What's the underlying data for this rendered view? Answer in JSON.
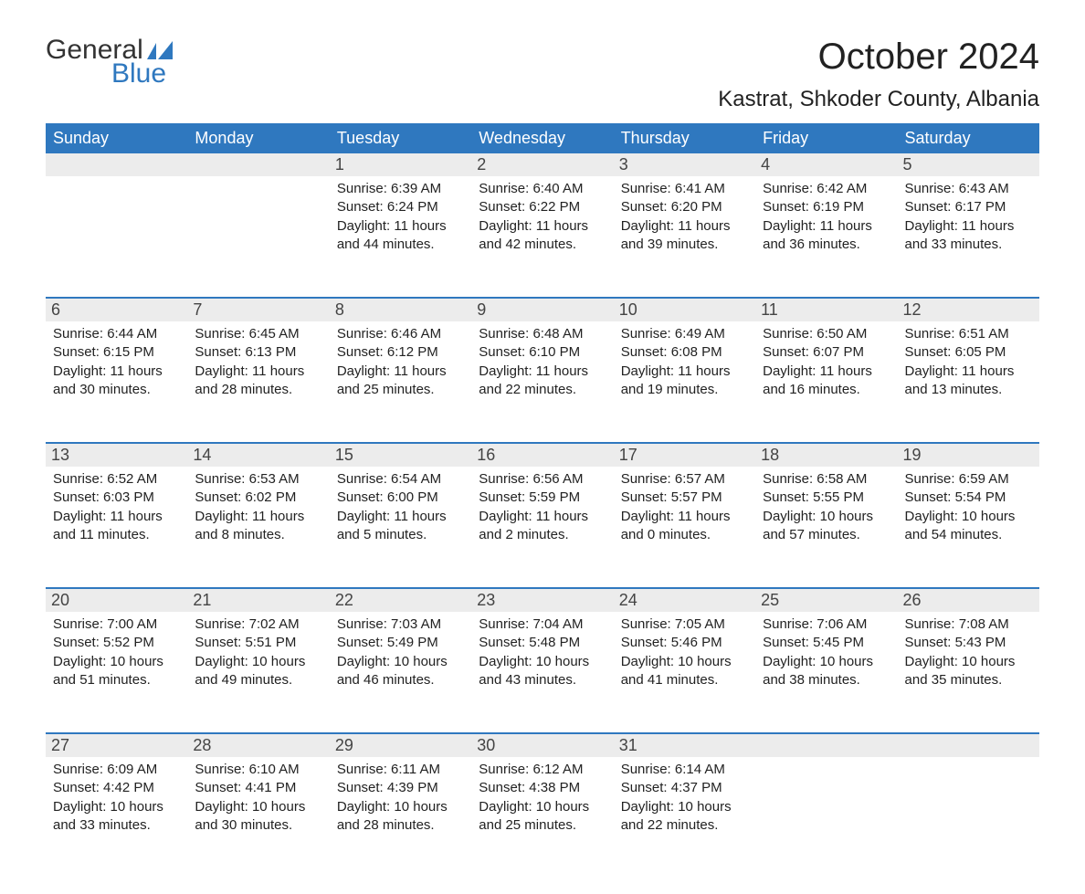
{
  "logo": {
    "text1": "General",
    "text2": "Blue"
  },
  "title": "October 2024",
  "location": "Kastrat, Shkoder County, Albania",
  "colors": {
    "header_bg": "#2f78bf",
    "header_fg": "#ffffff",
    "daynum_bg": "#ececec",
    "week_rule": "#2f78bf",
    "text": "#222222"
  },
  "weekdays": [
    "Sunday",
    "Monday",
    "Tuesday",
    "Wednesday",
    "Thursday",
    "Friday",
    "Saturday"
  ],
  "weeks": [
    [
      {
        "n": "",
        "sunrise": "",
        "sunset": "",
        "daylight": ""
      },
      {
        "n": "",
        "sunrise": "",
        "sunset": "",
        "daylight": ""
      },
      {
        "n": "1",
        "sunrise": "Sunrise: 6:39 AM",
        "sunset": "Sunset: 6:24 PM",
        "daylight": "Daylight: 11 hours and 44 minutes."
      },
      {
        "n": "2",
        "sunrise": "Sunrise: 6:40 AM",
        "sunset": "Sunset: 6:22 PM",
        "daylight": "Daylight: 11 hours and 42 minutes."
      },
      {
        "n": "3",
        "sunrise": "Sunrise: 6:41 AM",
        "sunset": "Sunset: 6:20 PM",
        "daylight": "Daylight: 11 hours and 39 minutes."
      },
      {
        "n": "4",
        "sunrise": "Sunrise: 6:42 AM",
        "sunset": "Sunset: 6:19 PM",
        "daylight": "Daylight: 11 hours and 36 minutes."
      },
      {
        "n": "5",
        "sunrise": "Sunrise: 6:43 AM",
        "sunset": "Sunset: 6:17 PM",
        "daylight": "Daylight: 11 hours and 33 minutes."
      }
    ],
    [
      {
        "n": "6",
        "sunrise": "Sunrise: 6:44 AM",
        "sunset": "Sunset: 6:15 PM",
        "daylight": "Daylight: 11 hours and 30 minutes."
      },
      {
        "n": "7",
        "sunrise": "Sunrise: 6:45 AM",
        "sunset": "Sunset: 6:13 PM",
        "daylight": "Daylight: 11 hours and 28 minutes."
      },
      {
        "n": "8",
        "sunrise": "Sunrise: 6:46 AM",
        "sunset": "Sunset: 6:12 PM",
        "daylight": "Daylight: 11 hours and 25 minutes."
      },
      {
        "n": "9",
        "sunrise": "Sunrise: 6:48 AM",
        "sunset": "Sunset: 6:10 PM",
        "daylight": "Daylight: 11 hours and 22 minutes."
      },
      {
        "n": "10",
        "sunrise": "Sunrise: 6:49 AM",
        "sunset": "Sunset: 6:08 PM",
        "daylight": "Daylight: 11 hours and 19 minutes."
      },
      {
        "n": "11",
        "sunrise": "Sunrise: 6:50 AM",
        "sunset": "Sunset: 6:07 PM",
        "daylight": "Daylight: 11 hours and 16 minutes."
      },
      {
        "n": "12",
        "sunrise": "Sunrise: 6:51 AM",
        "sunset": "Sunset: 6:05 PM",
        "daylight": "Daylight: 11 hours and 13 minutes."
      }
    ],
    [
      {
        "n": "13",
        "sunrise": "Sunrise: 6:52 AM",
        "sunset": "Sunset: 6:03 PM",
        "daylight": "Daylight: 11 hours and 11 minutes."
      },
      {
        "n": "14",
        "sunrise": "Sunrise: 6:53 AM",
        "sunset": "Sunset: 6:02 PM",
        "daylight": "Daylight: 11 hours and 8 minutes."
      },
      {
        "n": "15",
        "sunrise": "Sunrise: 6:54 AM",
        "sunset": "Sunset: 6:00 PM",
        "daylight": "Daylight: 11 hours and 5 minutes."
      },
      {
        "n": "16",
        "sunrise": "Sunrise: 6:56 AM",
        "sunset": "Sunset: 5:59 PM",
        "daylight": "Daylight: 11 hours and 2 minutes."
      },
      {
        "n": "17",
        "sunrise": "Sunrise: 6:57 AM",
        "sunset": "Sunset: 5:57 PM",
        "daylight": "Daylight: 11 hours and 0 minutes."
      },
      {
        "n": "18",
        "sunrise": "Sunrise: 6:58 AM",
        "sunset": "Sunset: 5:55 PM",
        "daylight": "Daylight: 10 hours and 57 minutes."
      },
      {
        "n": "19",
        "sunrise": "Sunrise: 6:59 AM",
        "sunset": "Sunset: 5:54 PM",
        "daylight": "Daylight: 10 hours and 54 minutes."
      }
    ],
    [
      {
        "n": "20",
        "sunrise": "Sunrise: 7:00 AM",
        "sunset": "Sunset: 5:52 PM",
        "daylight": "Daylight: 10 hours and 51 minutes."
      },
      {
        "n": "21",
        "sunrise": "Sunrise: 7:02 AM",
        "sunset": "Sunset: 5:51 PM",
        "daylight": "Daylight: 10 hours and 49 minutes."
      },
      {
        "n": "22",
        "sunrise": "Sunrise: 7:03 AM",
        "sunset": "Sunset: 5:49 PM",
        "daylight": "Daylight: 10 hours and 46 minutes."
      },
      {
        "n": "23",
        "sunrise": "Sunrise: 7:04 AM",
        "sunset": "Sunset: 5:48 PM",
        "daylight": "Daylight: 10 hours and 43 minutes."
      },
      {
        "n": "24",
        "sunrise": "Sunrise: 7:05 AM",
        "sunset": "Sunset: 5:46 PM",
        "daylight": "Daylight: 10 hours and 41 minutes."
      },
      {
        "n": "25",
        "sunrise": "Sunrise: 7:06 AM",
        "sunset": "Sunset: 5:45 PM",
        "daylight": "Daylight: 10 hours and 38 minutes."
      },
      {
        "n": "26",
        "sunrise": "Sunrise: 7:08 AM",
        "sunset": "Sunset: 5:43 PM",
        "daylight": "Daylight: 10 hours and 35 minutes."
      }
    ],
    [
      {
        "n": "27",
        "sunrise": "Sunrise: 6:09 AM",
        "sunset": "Sunset: 4:42 PM",
        "daylight": "Daylight: 10 hours and 33 minutes."
      },
      {
        "n": "28",
        "sunrise": "Sunrise: 6:10 AM",
        "sunset": "Sunset: 4:41 PM",
        "daylight": "Daylight: 10 hours and 30 minutes."
      },
      {
        "n": "29",
        "sunrise": "Sunrise: 6:11 AM",
        "sunset": "Sunset: 4:39 PM",
        "daylight": "Daylight: 10 hours and 28 minutes."
      },
      {
        "n": "30",
        "sunrise": "Sunrise: 6:12 AM",
        "sunset": "Sunset: 4:38 PM",
        "daylight": "Daylight: 10 hours and 25 minutes."
      },
      {
        "n": "31",
        "sunrise": "Sunrise: 6:14 AM",
        "sunset": "Sunset: 4:37 PM",
        "daylight": "Daylight: 10 hours and 22 minutes."
      },
      {
        "n": "",
        "sunrise": "",
        "sunset": "",
        "daylight": ""
      },
      {
        "n": "",
        "sunrise": "",
        "sunset": "",
        "daylight": ""
      }
    ]
  ]
}
